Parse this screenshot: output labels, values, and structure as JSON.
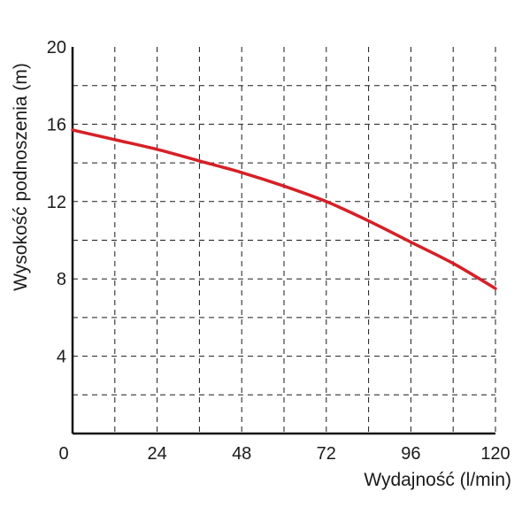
{
  "chart_data": {
    "type": "line",
    "title": "",
    "xlabel": "Wydajność (l/min)",
    "ylabel": "Wysokość podnoszenia (m)",
    "xlim": [
      0,
      120
    ],
    "ylim": [
      0,
      20
    ],
    "x_ticks": [
      "0",
      "24",
      "48",
      "72",
      "96",
      "120"
    ],
    "y_ticks": [
      "4",
      "8",
      "12",
      "16",
      "20"
    ],
    "grid": true,
    "grid_style": "dashed",
    "series": [
      {
        "color": "#d62027",
        "x": [
          0,
          12,
          24,
          36,
          48,
          60,
          72,
          84,
          96,
          108,
          120
        ],
        "y": [
          15.7,
          15.2,
          14.7,
          14.1,
          13.5,
          12.8,
          12.0,
          11.0,
          9.9,
          8.8,
          7.5
        ]
      }
    ]
  }
}
